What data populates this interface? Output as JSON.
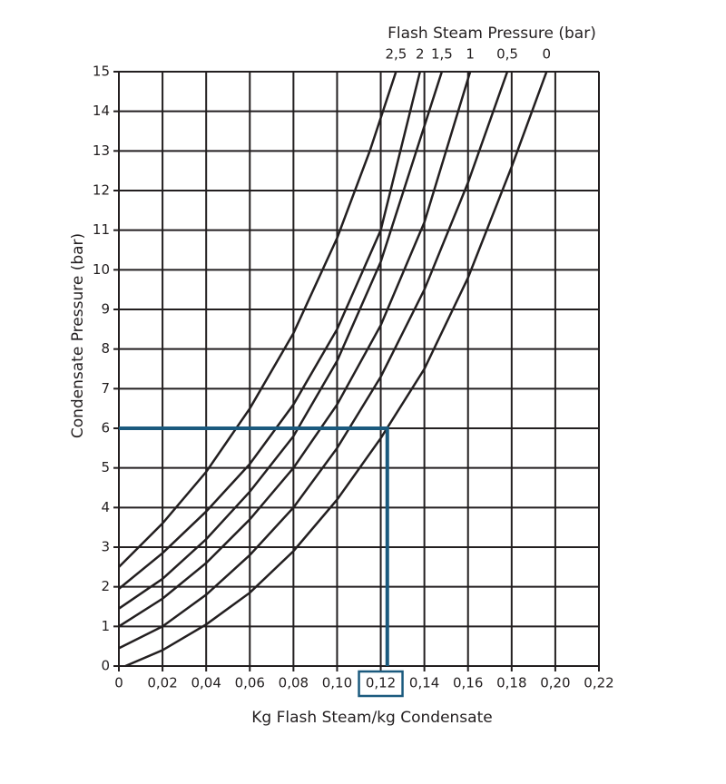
{
  "chart_data": {
    "type": "line",
    "title": "Flash Steam Pressure  (bar)",
    "xlabel": "Kg Flash Steam/kg Condensate",
    "ylabel": "Condensate Pressure (bar)",
    "xlim": [
      0,
      0.22
    ],
    "ylim": [
      0,
      15
    ],
    "xticks": [
      0,
      {
        "value": 0.02,
        "label": "0,02"
      },
      {
        "value": 0.04,
        "label": "0,04"
      },
      {
        "value": 0.06,
        "label": "0,06"
      },
      {
        "value": 0.08,
        "label": "0,08"
      },
      {
        "value": 0.1,
        "label": "0,10"
      },
      {
        "value": 0.12,
        "label": "0,12"
      },
      {
        "value": 0.14,
        "label": "0,14"
      },
      {
        "value": 0.16,
        "label": "0,16"
      },
      {
        "value": 0.18,
        "label": "0,18"
      },
      {
        "value": 0.2,
        "label": "0,20"
      },
      {
        "value": 0.22,
        "label": "0,22"
      }
    ],
    "yticks": [
      0,
      1,
      2,
      3,
      4,
      5,
      6,
      7,
      8,
      9,
      10,
      11,
      12,
      13,
      14,
      15
    ],
    "grid": true,
    "series": [
      {
        "name": "2,5",
        "color": "#231f20",
        "x": [
          0,
          0.02,
          0.04,
          0.06,
          0.08,
          0.1,
          0.115,
          0.127
        ],
        "values": [
          2.5,
          3.6,
          4.9,
          6.5,
          8.4,
          10.8,
          13.0,
          15
        ]
      },
      {
        "name": "2",
        "color": "#231f20",
        "x": [
          0,
          0.02,
          0.04,
          0.06,
          0.08,
          0.1,
          0.12,
          0.138
        ],
        "values": [
          1.95,
          2.85,
          3.9,
          5.1,
          6.6,
          8.5,
          11.0,
          15
        ]
      },
      {
        "name": "1,5",
        "color": "#231f20",
        "x": [
          0,
          0.02,
          0.04,
          0.06,
          0.08,
          0.1,
          0.12,
          0.148
        ],
        "values": [
          1.45,
          2.2,
          3.2,
          4.4,
          5.8,
          7.7,
          10.2,
          15
        ]
      },
      {
        "name": "1",
        "color": "#231f20",
        "x": [
          0,
          0.02,
          0.04,
          0.06,
          0.08,
          0.1,
          0.12,
          0.14,
          0.161
        ],
        "values": [
          1.0,
          1.7,
          2.6,
          3.7,
          5.0,
          6.6,
          8.6,
          11.2,
          15
        ]
      },
      {
        "name": "0,5",
        "color": "#231f20",
        "x": [
          0,
          0.02,
          0.04,
          0.06,
          0.08,
          0.1,
          0.12,
          0.14,
          0.16,
          0.178
        ],
        "values": [
          0.45,
          1.0,
          1.8,
          2.8,
          4.0,
          5.5,
          7.3,
          9.5,
          12.2,
          15
        ]
      },
      {
        "name": "0",
        "color": "#231f20",
        "x": [
          0.003,
          0.02,
          0.04,
          0.06,
          0.08,
          0.1,
          0.12,
          0.14,
          0.16,
          0.18,
          0.196
        ],
        "values": [
          0,
          0.4,
          1.05,
          1.85,
          2.9,
          4.2,
          5.75,
          7.5,
          9.8,
          12.6,
          15
        ]
      }
    ],
    "highlight": {
      "color": "#1b5a7e",
      "x": [
        0,
        0.123,
        0.123
      ],
      "values": [
        6,
        6,
        0
      ],
      "xtick": 6
    }
  }
}
